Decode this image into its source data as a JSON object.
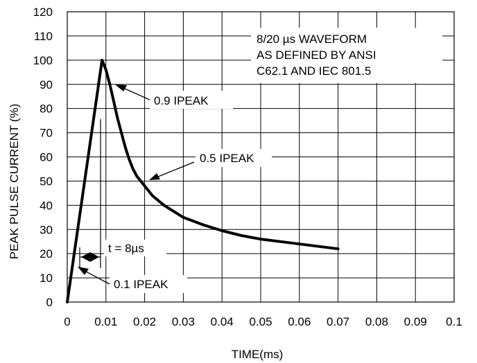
{
  "chart_data": {
    "type": "line",
    "xlabel": "TIME(ms)",
    "ylabel": "PEAK PULSE CURRENT (%)",
    "xlim": [
      0,
      0.1
    ],
    "ylim": [
      0,
      120
    ],
    "grid": true,
    "x_ticks": [
      "0",
      "0.01",
      "0.02",
      "0.03",
      "0.04",
      "0.05",
      "0.06",
      "0.07",
      "0.08",
      "0.09",
      "0.1"
    ],
    "y_ticks": [
      "0",
      "10",
      "20",
      "30",
      "40",
      "50",
      "60",
      "70",
      "80",
      "90",
      "100",
      "110",
      "120"
    ],
    "series": [
      {
        "x": [
          0,
          0.009,
          0.01,
          0.011,
          0.012,
          0.013,
          0.014,
          0.015,
          0.016,
          0.017,
          0.018,
          0.019,
          0.02,
          0.022,
          0.025,
          0.028,
          0.03,
          0.035,
          0.04,
          0.045,
          0.05,
          0.055,
          0.06,
          0.065,
          0.07
        ],
        "y": [
          0,
          100,
          96,
          90,
          83,
          76,
          70,
          64,
          59,
          55,
          52,
          50,
          48,
          44,
          40,
          37,
          35,
          32,
          29.5,
          27.5,
          26,
          25,
          24,
          23,
          22
        ]
      }
    ],
    "annotations": {
      "waveform_box": [
        "8/20 µs WAVEFORM",
        "AS DEFINED BY ANSI",
        "C62.1 AND IEC 801.5"
      ],
      "peak90": "0.9 IPEAK",
      "peak50": "0.5 IPEAK",
      "peak10": "0.1 IPEAK",
      "rise_time": "t = 8µs"
    }
  },
  "colors": {
    "line": "#000000",
    "grid": "#000000",
    "background": "#ffffff"
  }
}
